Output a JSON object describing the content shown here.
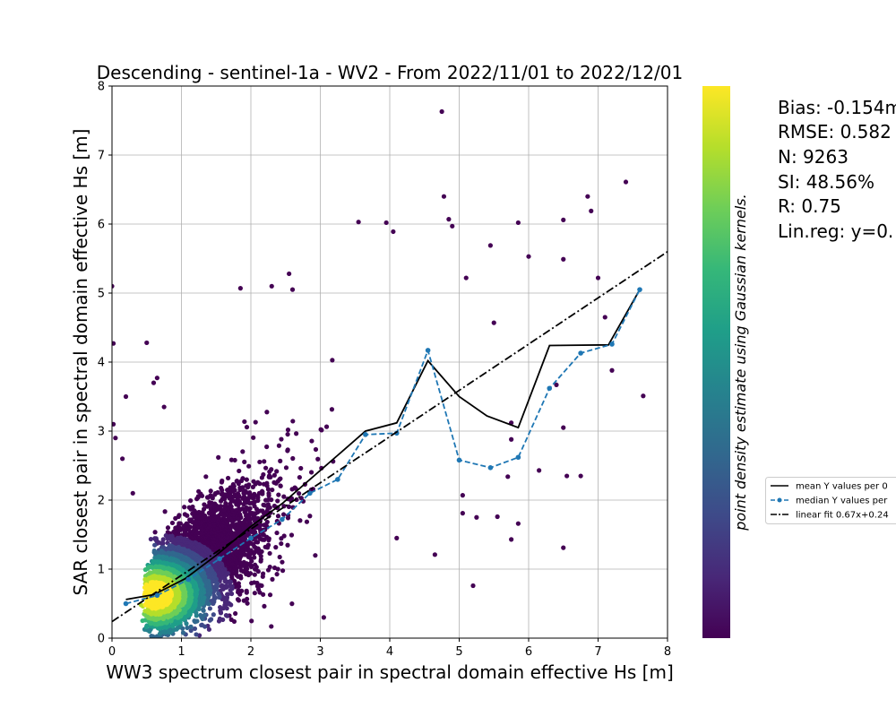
{
  "chart_data": {
    "type": "scatter",
    "title": "Descending - sentinel-1a - WV2 - From 2022/11/01 to 2022/12/01",
    "xlabel": "WW3 spectrum closest pair in spectral domain effective Hs [m]",
    "ylabel": "SAR closest pair in spectral domain effective Hs [m]",
    "xlim": [
      0,
      8
    ],
    "ylim": [
      0,
      8
    ],
    "xticks": [
      "0",
      "1",
      "2",
      "3",
      "4",
      "5",
      "6",
      "7",
      "8"
    ],
    "yticks": [
      "0",
      "1",
      "2",
      "3",
      "4",
      "5",
      "6",
      "7",
      "8"
    ],
    "grid": true,
    "colorbar_label": "point density estimate using Gaussian kernels.",
    "colormap": [
      "#440154",
      "#482878",
      "#3e4a89",
      "#31688e",
      "#26828e",
      "#1f9e89",
      "#35b779",
      "#6ece58",
      "#b5de2b",
      "#fde725"
    ],
    "stats": [
      "Bias: -0.154m",
      "RMSE: 0.582",
      "N: 9263",
      "SI: 48.56%",
      "R: 0.75",
      "Lin.reg: y=0."
    ],
    "legend": {
      "placement": "right",
      "entries": [
        "mean Y values per 0",
        "median Y values per",
        "linear fit 0.67x+0.24"
      ]
    },
    "series": [
      {
        "name": "mean Y values per 0",
        "style": "solid",
        "color": "#000000",
        "x": [
          0.2,
          0.6,
          1.05,
          1.5,
          2.0,
          2.45,
          2.85,
          3.25,
          3.65,
          4.1,
          4.55,
          5.0,
          5.4,
          5.85,
          6.3,
          7.15,
          7.6
        ],
        "y": [
          0.56,
          0.63,
          0.86,
          1.2,
          1.62,
          1.95,
          2.3,
          2.65,
          3.0,
          3.12,
          4.02,
          3.5,
          3.22,
          3.05,
          4.24,
          4.25,
          5.05
        ]
      },
      {
        "name": "median Y values per",
        "style": "dashed",
        "color": "#1f77b4",
        "x": [
          0.2,
          0.65,
          1.1,
          1.55,
          2.0,
          2.45,
          2.85,
          3.25,
          3.65,
          4.1,
          4.55,
          5.0,
          5.45,
          5.85,
          6.3,
          6.75,
          7.2,
          7.6
        ],
        "y": [
          0.5,
          0.62,
          0.85,
          1.15,
          1.45,
          1.72,
          2.1,
          2.3,
          2.95,
          2.97,
          4.17,
          2.58,
          2.47,
          2.62,
          3.62,
          4.13,
          4.26,
          5.05
        ]
      },
      {
        "name": "linear fit 0.67x+0.24",
        "style": "dashdot",
        "color": "#000000",
        "slope": 0.67,
        "intercept": 0.24
      }
    ],
    "outliers": [
      [
        4.75,
        7.63
      ],
      [
        4.78,
        6.4
      ],
      [
        4.85,
        6.07
      ],
      [
        4.9,
        5.97
      ],
      [
        5.45,
        5.69
      ],
      [
        6.5,
        6.06
      ],
      [
        6.85,
        6.4
      ],
      [
        6.9,
        6.19
      ],
      [
        7.4,
        6.61
      ],
      [
        5.85,
        6.02
      ],
      [
        6.0,
        5.53
      ],
      [
        6.5,
        5.49
      ],
      [
        7.0,
        5.22
      ],
      [
        7.1,
        4.65
      ],
      [
        5.1,
        5.22
      ],
      [
        5.5,
        4.57
      ],
      [
        7.2,
        3.88
      ],
      [
        7.65,
        3.51
      ],
      [
        6.4,
        3.67
      ],
      [
        6.5,
        3.05
      ],
      [
        6.55,
        2.35
      ],
      [
        6.75,
        2.35
      ],
      [
        6.15,
        2.43
      ],
      [
        5.75,
        3.12
      ],
      [
        5.75,
        2.88
      ],
      [
        5.7,
        2.34
      ],
      [
        5.85,
        1.66
      ],
      [
        5.55,
        1.76
      ],
      [
        5.25,
        1.75
      ],
      [
        5.05,
        1.81
      ],
      [
        5.05,
        2.07
      ],
      [
        6.5,
        1.31
      ],
      [
        5.75,
        1.43
      ],
      [
        5.2,
        0.76
      ],
      [
        4.65,
        1.21
      ],
      [
        4.1,
        1.45
      ],
      [
        0.0,
        5.1
      ],
      [
        0.02,
        4.27
      ],
      [
        0.02,
        3.1
      ],
      [
        0.5,
        4.28
      ],
      [
        0.65,
        3.77
      ],
      [
        0.6,
        3.7
      ],
      [
        0.75,
        3.35
      ],
      [
        2.3,
        5.1
      ],
      [
        2.55,
        5.28
      ],
      [
        2.6,
        5.05
      ],
      [
        1.85,
        5.07
      ],
      [
        3.95,
        6.02
      ],
      [
        3.55,
        6.03
      ],
      [
        4.05,
        5.89
      ],
      [
        0.2,
        3.5
      ],
      [
        0.05,
        2.9
      ],
      [
        3.05,
        0.3
      ],
      [
        0.3,
        2.1
      ],
      [
        0.15,
        2.6
      ]
    ]
  }
}
